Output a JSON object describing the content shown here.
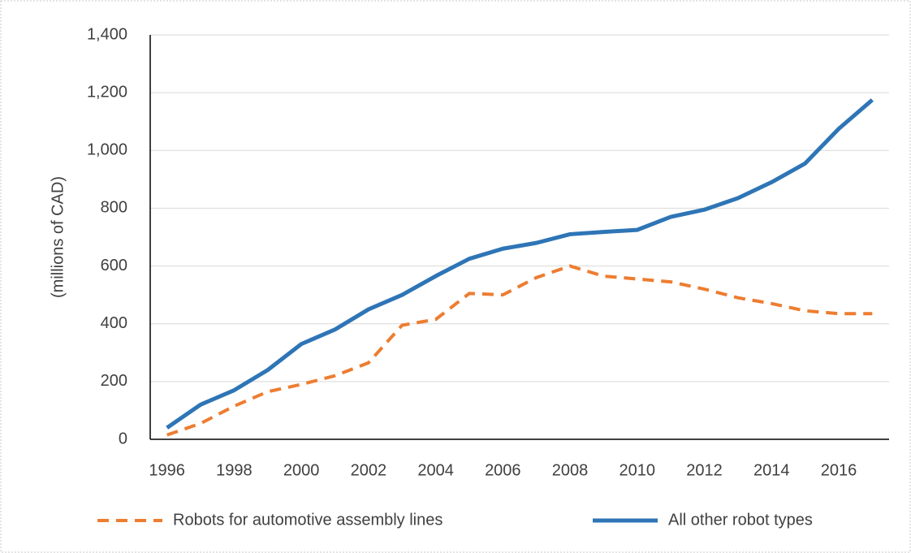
{
  "chart_data": {
    "type": "line",
    "y_label": "(millions of CAD)",
    "categories": [
      "1996",
      null,
      "1998",
      null,
      "2000",
      null,
      "2002",
      null,
      "2004",
      null,
      "2006",
      null,
      "2008",
      null,
      "2010",
      null,
      "2012",
      null,
      "2014",
      null,
      "2016",
      null
    ],
    "series": [
      {
        "name": "Robots for automotive assembly lines",
        "color": "#ed7d31",
        "dashed": true,
        "values": [
          15,
          55,
          115,
          165,
          190,
          220,
          265,
          395,
          415,
          505,
          500,
          560,
          600,
          565,
          555,
          545,
          520,
          490,
          470,
          445,
          435,
          435
        ]
      },
      {
        "name": "All other robot types",
        "color": "#2e75b6",
        "dashed": false,
        "values": [
          40,
          120,
          170,
          240,
          330,
          380,
          450,
          500,
          565,
          625,
          660,
          680,
          710,
          718,
          725,
          770,
          795,
          835,
          890,
          955,
          1075,
          1175
        ]
      }
    ],
    "ylim": [
      0,
      1400
    ],
    "yticks": [
      0,
      200,
      400,
      600,
      800,
      {
        "value": 1000,
        "label": "1,000"
      },
      {
        "value": 1200,
        "label": "1,200"
      },
      {
        "value": 1400,
        "label": "1,400"
      }
    ],
    "grid": true
  }
}
